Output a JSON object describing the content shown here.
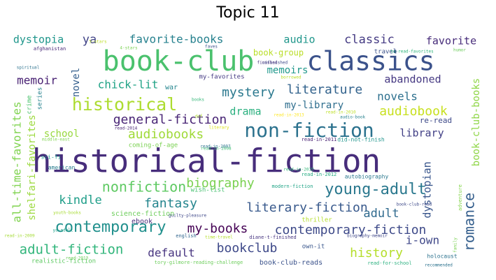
{
  "title": "Topic 11",
  "words": [
    {
      "text": "historical-fiction",
      "color": "#472d7b"
    },
    {
      "text": "book-club",
      "color": "#4ac16d"
    },
    {
      "text": "classics",
      "color": "#3b528b"
    },
    {
      "text": "non-fiction",
      "color": "#2c728e"
    },
    {
      "text": "historical",
      "color": "#addc30"
    },
    {
      "text": "young-adult",
      "color": "#2a788e"
    },
    {
      "text": "contemporary",
      "color": "#21908d"
    },
    {
      "text": "romance",
      "color": "#355f8d"
    },
    {
      "text": "nonfiction",
      "color": "#5ec962"
    },
    {
      "text": "adult-fiction",
      "color": "#31b57b"
    },
    {
      "text": "contemporary-fiction",
      "color": "#3e4a89"
    },
    {
      "text": "literary-fiction",
      "color": "#38598c"
    },
    {
      "text": "general-fiction",
      "color": "#482475"
    },
    {
      "text": "literature",
      "color": "#33638d"
    },
    {
      "text": "mystery",
      "color": "#2a788e"
    },
    {
      "text": "audiobooks",
      "color": "#a0da39"
    },
    {
      "text": "audiobook",
      "color": "#c8e020"
    },
    {
      "text": "biography",
      "color": "#7ad151"
    },
    {
      "text": "my-books",
      "color": "#440154"
    },
    {
      "text": "bookclub",
      "color": "#3e4989"
    },
    {
      "text": "history",
      "color": "#b5de2b"
    },
    {
      "text": "fantasy",
      "color": "#25858e"
    },
    {
      "text": "kindle",
      "color": "#1f9e89"
    },
    {
      "text": "adult",
      "color": "#306a8e"
    },
    {
      "text": "classic",
      "color": "#443a83"
    },
    {
      "text": "favorite-books",
      "color": "#26818e"
    },
    {
      "text": "chick-lit",
      "color": "#20a386"
    },
    {
      "text": "novels",
      "color": "#2d708e"
    },
    {
      "text": "memoir",
      "color": "#482173"
    },
    {
      "text": "default",
      "color": "#46337f"
    },
    {
      "text": "i-own",
      "color": "#3f4788"
    },
    {
      "text": "all-time-favorites",
      "color": "#7fd34e"
    },
    {
      "text": "shelfari-favorites",
      "color": "#9bd93c"
    },
    {
      "text": "book-club-books",
      "color": "#8ed645"
    },
    {
      "text": "dystopian",
      "color": "#39568c"
    },
    {
      "text": "dystopia",
      "color": "#1f968b"
    },
    {
      "text": "audio",
      "color": "#1f968b"
    },
    {
      "text": "ya",
      "color": "#414487"
    },
    {
      "text": "favorite",
      "color": "#472c7a"
    },
    {
      "text": "library",
      "color": "#424086"
    },
    {
      "text": "drama",
      "color": "#2ab07f"
    },
    {
      "text": "my-library",
      "color": "#2e6e8e"
    },
    {
      "text": "memoirs",
      "color": "#1f988b"
    },
    {
      "text": "abandoned",
      "color": "#453882"
    },
    {
      "text": "school",
      "color": "#98d83e"
    },
    {
      "text": "novel",
      "color": "#355f8d"
    },
    {
      "text": "book-group",
      "color": "#bade28"
    },
    {
      "text": "re-read",
      "color": "#3e4a89"
    },
    {
      "text": "coming-of-age",
      "color": "#7ad151"
    },
    {
      "text": "war",
      "color": "#25858e"
    },
    {
      "text": "crime",
      "color": "#4ac16d"
    },
    {
      "text": "ebook",
      "color": "#472d7b"
    },
    {
      "text": "science-fiction",
      "color": "#6ccd5a"
    },
    {
      "text": "realistic-fiction",
      "color": "#5ec962"
    },
    {
      "text": "holocaust",
      "color": "#2c728e"
    },
    {
      "text": "own-it",
      "color": "#39568c"
    },
    {
      "text": "book-club-reads",
      "color": "#3b528b"
    },
    {
      "text": "thriller",
      "color": "#b5de2b"
    },
    {
      "text": "wish-list",
      "color": "#46c06f"
    },
    {
      "text": "series",
      "color": "#26828e"
    },
    {
      "text": "sci-fi",
      "color": "#1e9b8a"
    },
    {
      "text": "american",
      "color": "#287c8e"
    },
    {
      "text": "my-favorites",
      "color": "#443983"
    },
    {
      "text": "travel",
      "color": "#3b528b"
    },
    {
      "text": "afghanistan",
      "color": "#482878"
    },
    {
      "text": "english",
      "color": "#31668e"
    },
    {
      "text": "autobiography",
      "color": "#2a788e"
    },
    {
      "text": "adventure",
      "color": "#84d44b"
    },
    {
      "text": "family",
      "color": "#7ad151"
    },
    {
      "text": "humor",
      "color": "#6ccd5a"
    },
    {
      "text": "faves",
      "color": "#3b528b"
    },
    {
      "text": "recommended",
      "color": "#2c728e"
    },
    {
      "text": "read-for-school",
      "color": "#2ab07f"
    },
    {
      "text": "to-read-favorites",
      "color": "#31b57b"
    },
    {
      "text": "unfinished",
      "color": "#3e4a89"
    },
    {
      "text": "borrowed",
      "color": "#bade28"
    },
    {
      "text": "books",
      "color": "#35b779"
    },
    {
      "text": "dnf",
      "color": "#addc30"
    },
    {
      "text": "read-in-2013",
      "color": "#fde725"
    },
    {
      "text": "read-in-2012",
      "color": "#25ab82"
    },
    {
      "text": "read-in-2011",
      "color": "#482173"
    },
    {
      "text": "read-in-2010",
      "color": "#bddf26"
    },
    {
      "text": "did-not-finish",
      "color": "#1f948c"
    },
    {
      "text": "audio-book",
      "color": "#26818e"
    },
    {
      "text": "middle-east",
      "color": "#7fd34e"
    },
    {
      "text": "modern-fiction",
      "color": "#20a486"
    },
    {
      "text": "book-club-read",
      "color": "#3e4a89"
    },
    {
      "text": "diane-t-finished",
      "color": "#463480"
    },
    {
      "text": "biography-memoir",
      "color": "#3f4788"
    },
    {
      "text": "time-travel",
      "color": "#b5de2b"
    },
    {
      "text": "tory-gilmore-reading-challenge",
      "color": "#6ccd5a"
    },
    {
      "text": "read-in-2009",
      "color": "#a5db36"
    },
    {
      "text": "read-in-2008",
      "color": "#3dbc74"
    },
    {
      "text": "read-in-2007",
      "color": "#2c738e"
    },
    {
      "text": "literary",
      "color": "#dce319"
    },
    {
      "text": "5-stars",
      "color": "#bddf26"
    },
    {
      "text": "4-stars",
      "color": "#7ad151"
    },
    {
      "text": "read-2014",
      "color": "#482576"
    },
    {
      "text": "finished",
      "color": "#46337f"
    },
    {
      "text": "guilty-pleasure",
      "color": "#3f4889"
    },
    {
      "text": "youth-books",
      "color": "#a8db34"
    },
    {
      "text": "ya-adult",
      "color": "#1fa088"
    },
    {
      "text": "read-in-2015",
      "color": "#34b679"
    },
    {
      "text": "spiritual",
      "color": "#2c728e"
    },
    {
      "text": "read-2013",
      "color": "#6ccd5a"
    }
  ]
}
